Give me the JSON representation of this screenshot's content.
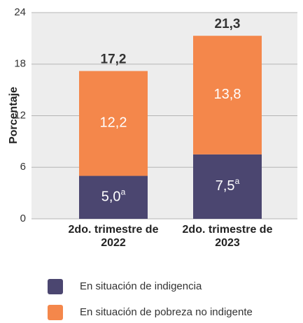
{
  "chart_data": {
    "type": "stacked-bar",
    "y_label": "Porcentaje",
    "categories": [
      "2do. trimestre de 2022",
      "2do. trimestre de 2023"
    ],
    "series": [
      {
        "name": "En situación de indigencia",
        "color": "#4b4670",
        "values": [
          5.0,
          7.5
        ],
        "value_labels": [
          "5,0",
          "7,5"
        ],
        "value_label_notes": [
          "a",
          "a"
        ]
      },
      {
        "name": "En situación de pobreza no indigente",
        "color": "#f4874b",
        "values": [
          12.2,
          13.8
        ],
        "value_labels": [
          "12,2",
          "13,8"
        ]
      }
    ],
    "totals": [
      17.2,
      21.3
    ],
    "total_labels": [
      "17,2",
      "21,3"
    ],
    "ylim": [
      0,
      24
    ],
    "yticks": [
      0,
      6,
      12,
      18,
      24
    ],
    "grid": true
  }
}
